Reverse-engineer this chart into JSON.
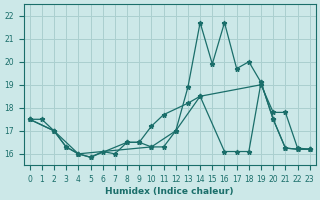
{
  "xlabel": "Humidex (Indice chaleur)",
  "x_ticks": [
    0,
    1,
    2,
    3,
    4,
    5,
    6,
    7,
    8,
    9,
    10,
    11,
    12,
    13,
    14,
    15,
    16,
    17,
    18,
    19,
    20,
    21,
    22,
    23
  ],
  "ylim": [
    15.5,
    22.5
  ],
  "y_ticks": [
    16,
    17,
    18,
    19,
    20,
    21,
    22
  ],
  "xlim": [
    -0.5,
    23.5
  ],
  "bg_color": "#cce8e8",
  "line_color": "#1a6e6a",
  "grid_color": "#aacfcf",
  "line1_x": [
    0,
    1,
    2,
    3,
    4,
    5,
    6,
    7,
    8,
    9,
    10,
    11,
    12,
    13,
    14,
    15,
    16,
    17,
    18,
    19,
    20,
    21,
    22,
    23
  ],
  "line1_y": [
    17.5,
    17.5,
    17.0,
    16.3,
    16.0,
    15.85,
    16.1,
    16.0,
    16.5,
    16.5,
    16.3,
    16.3,
    17.0,
    18.9,
    21.7,
    19.9,
    21.7,
    19.7,
    20.0,
    19.1,
    17.5,
    16.25,
    16.2,
    16.2
  ],
  "line2_x": [
    0,
    2,
    3,
    4,
    5,
    8,
    9,
    10,
    11,
    13,
    14,
    19,
    20,
    21,
    22,
    23
  ],
  "line2_y": [
    17.5,
    17.0,
    16.3,
    16.0,
    15.85,
    16.5,
    16.5,
    17.2,
    17.7,
    18.2,
    18.5,
    19.0,
    17.8,
    17.8,
    16.25,
    16.2
  ],
  "line3_x": [
    0,
    2,
    4,
    10,
    12,
    14,
    16,
    17,
    18,
    19,
    20,
    21,
    22,
    23
  ],
  "line3_y": [
    17.5,
    17.0,
    16.0,
    16.3,
    17.0,
    18.5,
    16.1,
    16.1,
    16.1,
    19.1,
    17.5,
    16.25,
    16.2,
    16.2
  ]
}
